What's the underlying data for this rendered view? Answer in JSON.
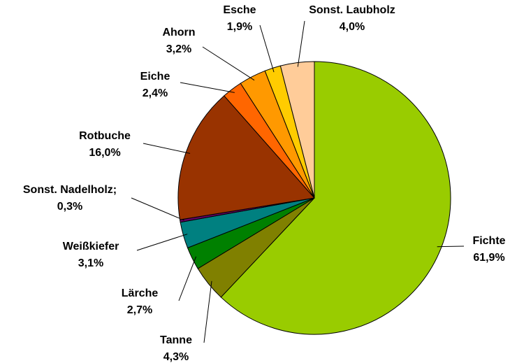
{
  "chart_data": {
    "type": "pie",
    "categories": [
      "Fichte",
      "Tanne",
      "Lärche",
      "Weißkiefer",
      "Sonst. Nadelholz;",
      "Rotbuche",
      "Eiche",
      "Ahorn",
      "Esche",
      "Sonst. Laubholz"
    ],
    "values": [
      61.9,
      4.3,
      2.7,
      3.1,
      0.3,
      16.0,
      2.4,
      3.2,
      1.9,
      4.0
    ],
    "value_labels": [
      "61,9%",
      "4,3%",
      "2,7%",
      "3,1%",
      "0,3%",
      "16,0%",
      "2,4%",
      "3,2%",
      "1,9%",
      "4,0%"
    ],
    "colors": [
      "#99cc00",
      "#808000",
      "#008000",
      "#008080",
      "#660066",
      "#993300",
      "#ff6600",
      "#ff9900",
      "#ffcc00",
      "#ffcc99"
    ]
  }
}
